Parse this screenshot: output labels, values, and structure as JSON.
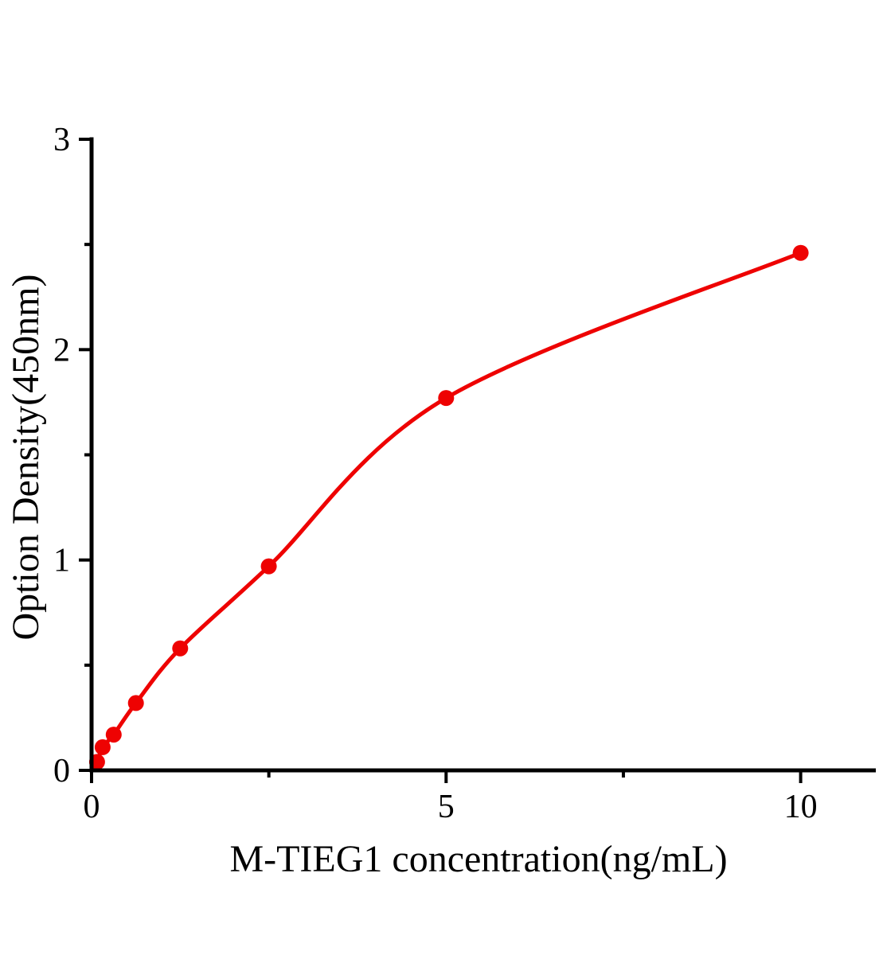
{
  "page": {
    "background": "#ffffff"
  },
  "chart_data": {
    "type": "scatter",
    "title": "",
    "xlabel": "M-TIEG1 concentration(ng/mL)",
    "ylabel": "Option Density(450nm)",
    "xlim": [
      0,
      11.06
    ],
    "ylim": [
      0,
      3
    ],
    "grid": false,
    "legend": "none",
    "axis_color": "#000000",
    "x_major_ticks": [
      {
        "value": 0,
        "label": "0"
      },
      {
        "value": 5,
        "label": "5"
      },
      {
        "value": 10,
        "label": "10"
      }
    ],
    "x_minor_ticks": [
      2.5,
      7.5
    ],
    "y_major_ticks": [
      {
        "value": 0,
        "label": "0"
      },
      {
        "value": 1,
        "label": "1"
      },
      {
        "value": 2,
        "label": "2"
      },
      {
        "value": 3,
        "label": "3"
      }
    ],
    "y_minor_ticks": [
      0.5,
      1.5,
      2.5
    ],
    "series": [
      {
        "name": "M-TIEG1 standard curve",
        "type": "scatter+smooth-line",
        "color": "#ee0202",
        "marker": "circle",
        "curve_origin": {
          "x": 0,
          "y": 0
        },
        "points": [
          {
            "x": 0.078,
            "y": 0.04
          },
          {
            "x": 0.156,
            "y": 0.11
          },
          {
            "x": 0.312,
            "y": 0.17
          },
          {
            "x": 0.625,
            "y": 0.32
          },
          {
            "x": 1.25,
            "y": 0.58
          },
          {
            "x": 2.5,
            "y": 0.97
          },
          {
            "x": 5,
            "y": 1.77
          },
          {
            "x": 10,
            "y": 2.46
          }
        ]
      }
    ]
  }
}
